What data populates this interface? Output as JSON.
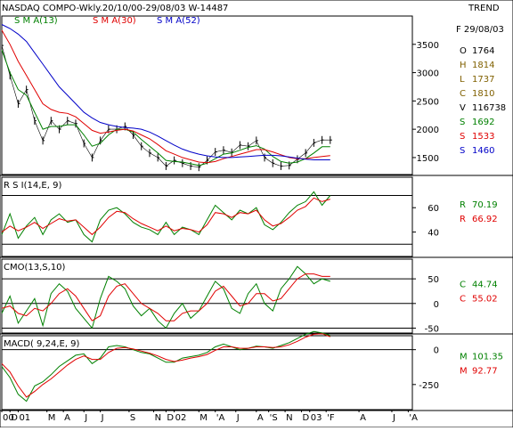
{
  "header": {
    "title": "NASDAQ COMPO-Wkly.20/10/00-29/08/03  W-14487",
    "trend_label": "TREND",
    "legend": [
      {
        "label": "S M A(13)",
        "color": "#008000"
      },
      {
        "label": "S M A(30)",
        "color": "#e00000"
      },
      {
        "label": "S M A(52)",
        "color": "#0000c8"
      }
    ]
  },
  "info_panel": {
    "date": "F 29/08/03",
    "rows": [
      {
        "key": "O",
        "value": "1764",
        "color": "#000000"
      },
      {
        "key": "H",
        "value": "1814",
        "color": "#806000"
      },
      {
        "key": "L",
        "value": "1737",
        "color": "#806000"
      },
      {
        "key": "C",
        "value": "1810",
        "color": "#806000"
      },
      {
        "key": "V",
        "value": "116738",
        "color": "#000000"
      },
      {
        "key": "S",
        "value": "1692",
        "color": "#008000"
      },
      {
        "key": "S",
        "value": "1533",
        "color": "#e00000"
      },
      {
        "key": "S",
        "value": "1460",
        "color": "#0000c8"
      }
    ]
  },
  "chart_data": [
    {
      "type": "line",
      "name_label": "",
      "ylim": [
        1200,
        4000
      ],
      "yticks": [
        1500,
        2000,
        2500,
        3000,
        3500
      ],
      "x": [
        0,
        4,
        8,
        12,
        16,
        20,
        24,
        28,
        32,
        36,
        40,
        44,
        48,
        52,
        56,
        60,
        64,
        68,
        72,
        76,
        80,
        84,
        88,
        92,
        96,
        100,
        104,
        108,
        112,
        116,
        120,
        124,
        128,
        132,
        136,
        140,
        144,
        148,
        152,
        156,
        160
      ],
      "price": [
        3480,
        2950,
        2450,
        2700,
        2150,
        1800,
        2150,
        2000,
        2150,
        2100,
        1750,
        1500,
        1800,
        2000,
        2000,
        2050,
        1900,
        1700,
        1580,
        1500,
        1350,
        1450,
        1400,
        1350,
        1330,
        1450,
        1600,
        1630,
        1590,
        1720,
        1700,
        1800,
        1500,
        1400,
        1350,
        1360,
        1470,
        1580,
        1760,
        1810,
        1810
      ],
      "series": [
        {
          "name": "S M A(13)",
          "color": "#008000",
          "values": [
            3400,
            3000,
            2700,
            2600,
            2300,
            2000,
            2050,
            2050,
            2080,
            2080,
            1900,
            1700,
            1750,
            1900,
            2000,
            2000,
            1950,
            1820,
            1700,
            1580,
            1450,
            1430,
            1420,
            1390,
            1360,
            1400,
            1480,
            1560,
            1580,
            1630,
            1680,
            1710,
            1650,
            1520,
            1430,
            1400,
            1420,
            1480,
            1580,
            1690,
            1692
          ]
        },
        {
          "name": "S M A(30)",
          "color": "#e00000",
          "values": [
            3750,
            3500,
            3200,
            2950,
            2700,
            2450,
            2350,
            2300,
            2280,
            2220,
            2100,
            1980,
            1930,
            1950,
            1980,
            2000,
            1970,
            1900,
            1830,
            1730,
            1620,
            1560,
            1500,
            1460,
            1420,
            1410,
            1430,
            1480,
            1520,
            1560,
            1600,
            1640,
            1640,
            1600,
            1550,
            1500,
            1480,
            1480,
            1500,
            1520,
            1533
          ]
        },
        {
          "name": "S M A(52)",
          "color": "#0000c8",
          "values": [
            3850,
            3780,
            3680,
            3550,
            3350,
            3150,
            2950,
            2750,
            2600,
            2450,
            2300,
            2200,
            2120,
            2080,
            2050,
            2030,
            2020,
            2000,
            1950,
            1880,
            1800,
            1720,
            1650,
            1600,
            1560,
            1530,
            1510,
            1500,
            1500,
            1510,
            1520,
            1530,
            1540,
            1540,
            1530,
            1510,
            1490,
            1470,
            1460,
            1460,
            1460
          ]
        }
      ]
    },
    {
      "type": "line",
      "name_label": "R S I(14,E, 9)",
      "ylim": [
        20,
        85
      ],
      "yticks": [
        40,
        60
      ],
      "hlines": [
        30,
        70
      ],
      "x": [
        0,
        4,
        8,
        12,
        16,
        20,
        24,
        28,
        32,
        36,
        40,
        44,
        48,
        52,
        56,
        60,
        64,
        68,
        72,
        76,
        80,
        84,
        88,
        92,
        96,
        100,
        104,
        108,
        112,
        116,
        120,
        124,
        128,
        132,
        136,
        140,
        144,
        148,
        152,
        156,
        160
      ],
      "series": [
        {
          "name": "R",
          "value_label": "70.19",
          "color": "#008000",
          "values": [
            38,
            55,
            35,
            45,
            52,
            38,
            50,
            55,
            48,
            50,
            38,
            32,
            50,
            58,
            60,
            55,
            48,
            44,
            42,
            38,
            48,
            38,
            44,
            42,
            38,
            50,
            62,
            56,
            50,
            58,
            55,
            60,
            46,
            42,
            48,
            56,
            62,
            65,
            73,
            62,
            70
          ]
        },
        {
          "name": "R",
          "value_label": "66.92",
          "color": "#e00000",
          "values": [
            40,
            45,
            41,
            44,
            48,
            43,
            47,
            51,
            49,
            50,
            44,
            38,
            44,
            52,
            57,
            56,
            51,
            47,
            44,
            41,
            45,
            41,
            43,
            42,
            40,
            46,
            56,
            55,
            52,
            56,
            55,
            58,
            50,
            45,
            47,
            52,
            58,
            61,
            68,
            65,
            67
          ]
        }
      ]
    },
    {
      "type": "line",
      "name_label": "CMO(13,S,10)",
      "ylim": [
        -60,
        90
      ],
      "yticks": [
        -50,
        0,
        50
      ],
      "hlines": [
        -50,
        0,
        50
      ],
      "x": [
        0,
        4,
        8,
        12,
        16,
        20,
        24,
        28,
        32,
        36,
        40,
        44,
        48,
        52,
        56,
        60,
        64,
        68,
        72,
        76,
        80,
        84,
        88,
        92,
        96,
        100,
        104,
        108,
        112,
        116,
        120,
        124,
        128,
        132,
        136,
        140,
        144,
        148,
        152,
        156,
        160
      ],
      "series": [
        {
          "name": "C",
          "value_label": "44.74",
          "color": "#008000",
          "values": [
            -20,
            15,
            -40,
            -15,
            10,
            -45,
            20,
            40,
            25,
            -10,
            -30,
            -50,
            10,
            55,
            45,
            30,
            -5,
            -25,
            -10,
            -35,
            -50,
            -20,
            0,
            -30,
            -15,
            15,
            45,
            30,
            -10,
            -20,
            20,
            40,
            0,
            -15,
            30,
            50,
            75,
            60,
            40,
            50,
            45
          ]
        },
        {
          "name": "C",
          "value_label": "55.02",
          "color": "#e00000",
          "values": [
            -10,
            -5,
            -20,
            -25,
            -10,
            -15,
            0,
            20,
            30,
            15,
            -10,
            -35,
            -25,
            15,
            35,
            40,
            20,
            0,
            -10,
            -20,
            -35,
            -35,
            -20,
            -15,
            -15,
            0,
            25,
            35,
            15,
            -5,
            0,
            20,
            20,
            5,
            10,
            30,
            50,
            60,
            60,
            55,
            55
          ]
        }
      ]
    },
    {
      "type": "line",
      "name_label": "MACD( 9,24,E, 9)",
      "ylim": [
        -430,
        100
      ],
      "yticks": [
        -250,
        0
      ],
      "hlines": [
        0
      ],
      "x": [
        0,
        4,
        8,
        12,
        16,
        20,
        24,
        28,
        32,
        36,
        40,
        44,
        48,
        52,
        56,
        60,
        64,
        68,
        72,
        76,
        80,
        84,
        88,
        92,
        96,
        100,
        104,
        108,
        112,
        116,
        120,
        124,
        128,
        132,
        136,
        140,
        144,
        148,
        152,
        156,
        160
      ],
      "series": [
        {
          "name": "M",
          "value_label": "101.35",
          "color": "#008000",
          "values": [
            -120,
            -200,
            -320,
            -370,
            -260,
            -230,
            -180,
            -120,
            -80,
            -40,
            -30,
            -100,
            -60,
            20,
            30,
            20,
            0,
            -20,
            -30,
            -60,
            -90,
            -90,
            -60,
            -50,
            -40,
            -20,
            20,
            40,
            20,
            0,
            10,
            25,
            20,
            10,
            30,
            50,
            80,
            110,
            130,
            120,
            101
          ]
        },
        {
          "name": "M",
          "value_label": "92.77",
          "color": "#e00000",
          "values": [
            -100,
            -160,
            -260,
            -340,
            -300,
            -250,
            -210,
            -160,
            -110,
            -70,
            -45,
            -70,
            -70,
            -20,
            10,
            15,
            5,
            -10,
            -25,
            -45,
            -70,
            -85,
            -75,
            -60,
            -50,
            -35,
            -5,
            20,
            20,
            10,
            10,
            20,
            20,
            15,
            20,
            35,
            60,
            90,
            110,
            115,
            93
          ]
        }
      ]
    }
  ],
  "x_axis": {
    "ticks": [
      {
        "x": 0,
        "label": "00"
      },
      {
        "x": 4,
        "label": "D"
      },
      {
        "x": 8,
        "label": "01"
      },
      {
        "x": 22,
        "label": "M"
      },
      {
        "x": 30,
        "label": "A"
      },
      {
        "x": 40,
        "label": "J"
      },
      {
        "x": 48,
        "label": "J"
      },
      {
        "x": 62,
        "label": "S"
      },
      {
        "x": 74,
        "label": "N"
      },
      {
        "x": 80,
        "label": "D"
      },
      {
        "x": 84,
        "label": "02"
      },
      {
        "x": 96,
        "label": "M"
      },
      {
        "x": 104,
        "label": "'A"
      },
      {
        "x": 114,
        "label": "J"
      },
      {
        "x": 124,
        "label": "A"
      },
      {
        "x": 130,
        "label": "'S"
      },
      {
        "x": 138,
        "label": "N"
      },
      {
        "x": 146,
        "label": "D"
      },
      {
        "x": 150,
        "label": "03"
      },
      {
        "x": 158,
        "label": "'F"
      },
      {
        "x": 174,
        "label": "A"
      },
      {
        "x": 190,
        "label": "J"
      },
      {
        "x": 198,
        "label": "'A"
      }
    ]
  }
}
